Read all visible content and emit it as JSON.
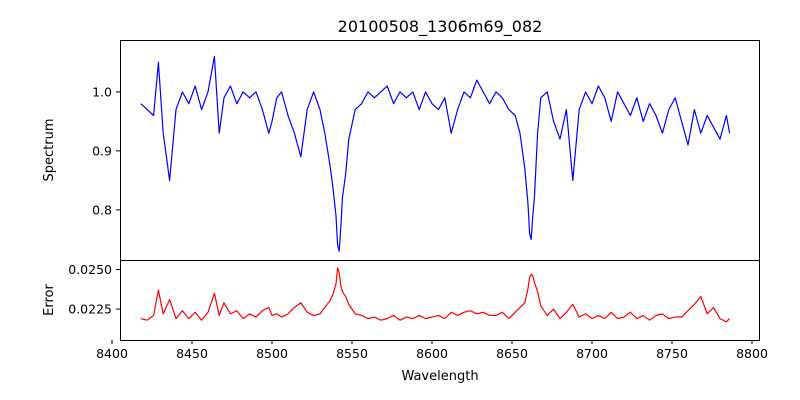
{
  "chart_data": [
    {
      "type": "line",
      "panel": "top",
      "title": "20100508_1306m69_082",
      "xlabel": "",
      "ylabel": "Spectrum",
      "xlim": [
        8405,
        8805
      ],
      "ylim": [
        0.715,
        1.088
      ],
      "yticks": [
        0.8,
        0.9,
        1.0
      ],
      "ytick_labels": [
        "0.8",
        "0.9",
        "1.0"
      ],
      "grid": false,
      "series": [
        {
          "color": "#0000ff",
          "x": [
            8418,
            8422,
            8426,
            8429,
            8432,
            8436,
            8440,
            8444,
            8448,
            8452,
            8456,
            8460,
            8464,
            8467,
            8470,
            8474,
            8478,
            8482,
            8486,
            8490,
            8494,
            8498,
            8500,
            8503,
            8506,
            8510,
            8514,
            8518,
            8522,
            8526,
            8530,
            8533,
            8536,
            8538,
            8540,
            8541,
            8542,
            8543,
            8544,
            8546,
            8548,
            8552,
            8556,
            8560,
            8564,
            8568,
            8572,
            8576,
            8580,
            8584,
            8588,
            8592,
            8596,
            8600,
            8604,
            8608,
            8612,
            8616,
            8620,
            8624,
            8628,
            8632,
            8636,
            8640,
            8644,
            8648,
            8652,
            8655,
            8658,
            8660,
            8661,
            8662,
            8663,
            8664,
            8666,
            8668,
            8672,
            8676,
            8680,
            8684,
            8688,
            8692,
            8696,
            8700,
            8704,
            8708,
            8712,
            8716,
            8720,
            8724,
            8728,
            8732,
            8736,
            8740,
            8744,
            8748,
            8752,
            8756,
            8760,
            8764,
            8768,
            8772,
            8776,
            8780,
            8784,
            8786
          ],
          "y": [
            0.98,
            0.97,
            0.96,
            1.05,
            0.93,
            0.85,
            0.97,
            1.0,
            0.98,
            1.01,
            0.97,
            1.0,
            1.06,
            0.93,
            0.99,
            1.01,
            0.98,
            1.0,
            0.99,
            1.0,
            0.97,
            0.93,
            0.95,
            0.99,
            1.0,
            0.96,
            0.93,
            0.89,
            0.97,
            1.0,
            0.97,
            0.93,
            0.88,
            0.84,
            0.79,
            0.74,
            0.73,
            0.77,
            0.82,
            0.86,
            0.92,
            0.97,
            0.98,
            1.0,
            0.99,
            1.0,
            1.01,
            0.98,
            1.0,
            0.99,
            1.0,
            0.97,
            1.0,
            0.98,
            0.97,
            0.99,
            0.93,
            0.97,
            1.0,
            0.99,
            1.02,
            1.0,
            0.98,
            1.0,
            0.99,
            0.97,
            0.96,
            0.93,
            0.87,
            0.81,
            0.76,
            0.75,
            0.79,
            0.82,
            0.93,
            0.99,
            1.0,
            0.95,
            0.92,
            0.97,
            0.85,
            0.97,
            1.0,
            0.98,
            1.01,
            0.99,
            0.95,
            1.0,
            0.98,
            0.96,
            0.99,
            0.95,
            0.98,
            0.96,
            0.93,
            0.97,
            0.99,
            0.95,
            0.91,
            0.97,
            0.93,
            0.96,
            0.94,
            0.92,
            0.96,
            0.93
          ]
        }
      ]
    },
    {
      "type": "line",
      "panel": "bottom",
      "title": "",
      "xlabel": "Wavelength",
      "ylabel": "Error",
      "xlim": [
        8405,
        8805
      ],
      "ylim": [
        0.02055,
        0.0256
      ],
      "xticks": [
        8400,
        8450,
        8500,
        8550,
        8600,
        8650,
        8700,
        8750,
        8800
      ],
      "xtick_labels": [
        "8400",
        "8450",
        "8500",
        "8550",
        "8600",
        "8650",
        "8700",
        "8750",
        "8800"
      ],
      "yticks": [
        0.0225,
        0.025
      ],
      "ytick_labels": [
        "0.0225",
        "0.0250"
      ],
      "grid": false,
      "series": [
        {
          "color": "#ff0000",
          "x": [
            8418,
            8422,
            8426,
            8429,
            8432,
            8436,
            8440,
            8444,
            8448,
            8452,
            8456,
            8460,
            8464,
            8467,
            8470,
            8474,
            8478,
            8482,
            8486,
            8490,
            8494,
            8498,
            8500,
            8503,
            8506,
            8510,
            8514,
            8518,
            8522,
            8526,
            8530,
            8533,
            8536,
            8538,
            8540,
            8541,
            8542,
            8543,
            8544,
            8546,
            8548,
            8552,
            8556,
            8560,
            8564,
            8568,
            8572,
            8576,
            8580,
            8584,
            8588,
            8592,
            8596,
            8600,
            8604,
            8608,
            8612,
            8616,
            8620,
            8624,
            8628,
            8632,
            8636,
            8640,
            8644,
            8648,
            8652,
            8655,
            8658,
            8660,
            8661,
            8662,
            8663,
            8664,
            8666,
            8668,
            8672,
            8676,
            8680,
            8684,
            8688,
            8692,
            8696,
            8700,
            8704,
            8708,
            8712,
            8716,
            8720,
            8724,
            8728,
            8732,
            8736,
            8740,
            8744,
            8748,
            8752,
            8756,
            8760,
            8764,
            8768,
            8772,
            8776,
            8780,
            8784,
            8786
          ],
          "y": [
            0.0219,
            0.0218,
            0.0221,
            0.0237,
            0.0222,
            0.0231,
            0.0219,
            0.0224,
            0.0219,
            0.0223,
            0.0218,
            0.0223,
            0.0235,
            0.0221,
            0.0229,
            0.0222,
            0.0224,
            0.0219,
            0.0222,
            0.022,
            0.0224,
            0.0226,
            0.0221,
            0.0222,
            0.022,
            0.0222,
            0.0226,
            0.0229,
            0.0223,
            0.0221,
            0.0222,
            0.0226,
            0.023,
            0.0234,
            0.0241,
            0.0251,
            0.0248,
            0.024,
            0.0236,
            0.0233,
            0.0228,
            0.0222,
            0.0221,
            0.0219,
            0.022,
            0.0218,
            0.0219,
            0.0221,
            0.0218,
            0.022,
            0.0219,
            0.0221,
            0.0219,
            0.022,
            0.0221,
            0.0219,
            0.0223,
            0.0221,
            0.0223,
            0.0224,
            0.0222,
            0.0223,
            0.0221,
            0.0221,
            0.0223,
            0.0219,
            0.0223,
            0.0226,
            0.0229,
            0.0238,
            0.0245,
            0.0247,
            0.0246,
            0.0242,
            0.0236,
            0.0227,
            0.0221,
            0.0225,
            0.0219,
            0.0223,
            0.0228,
            0.022,
            0.0222,
            0.0219,
            0.0221,
            0.0219,
            0.0223,
            0.0219,
            0.022,
            0.0223,
            0.0219,
            0.0221,
            0.0218,
            0.0221,
            0.0222,
            0.0219,
            0.022,
            0.022,
            0.0224,
            0.0228,
            0.0233,
            0.0222,
            0.0226,
            0.0219,
            0.0217,
            0.0219
          ]
        }
      ]
    }
  ]
}
